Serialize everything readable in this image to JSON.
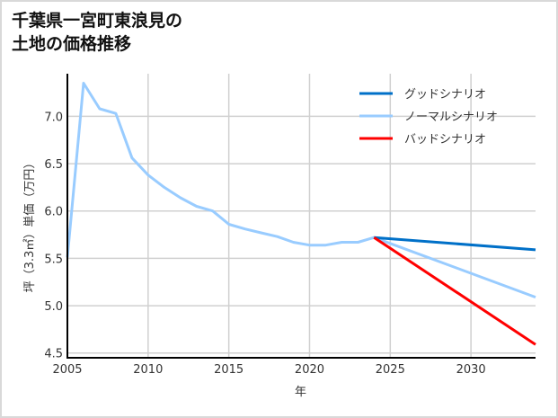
{
  "title": {
    "line1": "千葉県一宮町東浪見の",
    "line2": "土地の価格推移"
  },
  "chart_data": {
    "type": "line",
    "title": "千葉県一宮町東浪見の土地の価格推移",
    "xlabel": "年",
    "ylabel": "坪（3.3㎡）単価（万円）",
    "xlim": [
      2005,
      2034
    ],
    "ylim": [
      4.45,
      7.45
    ],
    "xticks": [
      2005,
      2010,
      2015,
      2020,
      2025,
      2030
    ],
    "yticks": [
      4.5,
      5.0,
      5.5,
      6.0,
      6.5,
      7.0
    ],
    "ytick_labels": [
      "4.5",
      "5.0",
      "5.5",
      "6.0",
      "6.5",
      "7.0"
    ],
    "grid": true,
    "legend_position": "upper right",
    "series": [
      {
        "name": "グッドシナリオ",
        "color": "#0070c8",
        "x": [
          2024,
          2034
        ],
        "values": [
          5.72,
          5.59
        ]
      },
      {
        "name": "ノーマルシナリオ",
        "color": "#99ccff",
        "x": [
          2005,
          2006,
          2007,
          2008,
          2009,
          2010,
          2011,
          2012,
          2013,
          2014,
          2015,
          2016,
          2017,
          2018,
          2019,
          2020,
          2021,
          2022,
          2023,
          2024,
          2034
        ],
        "values": [
          5.51,
          7.35,
          7.08,
          7.03,
          6.56,
          6.38,
          6.25,
          6.14,
          6.05,
          6.0,
          5.86,
          5.81,
          5.77,
          5.73,
          5.67,
          5.64,
          5.64,
          5.67,
          5.67,
          5.72,
          5.09
        ]
      },
      {
        "name": "バッドシナリオ",
        "color": "#ff0000",
        "x": [
          2024,
          2034
        ],
        "values": [
          5.72,
          4.59
        ]
      }
    ]
  }
}
